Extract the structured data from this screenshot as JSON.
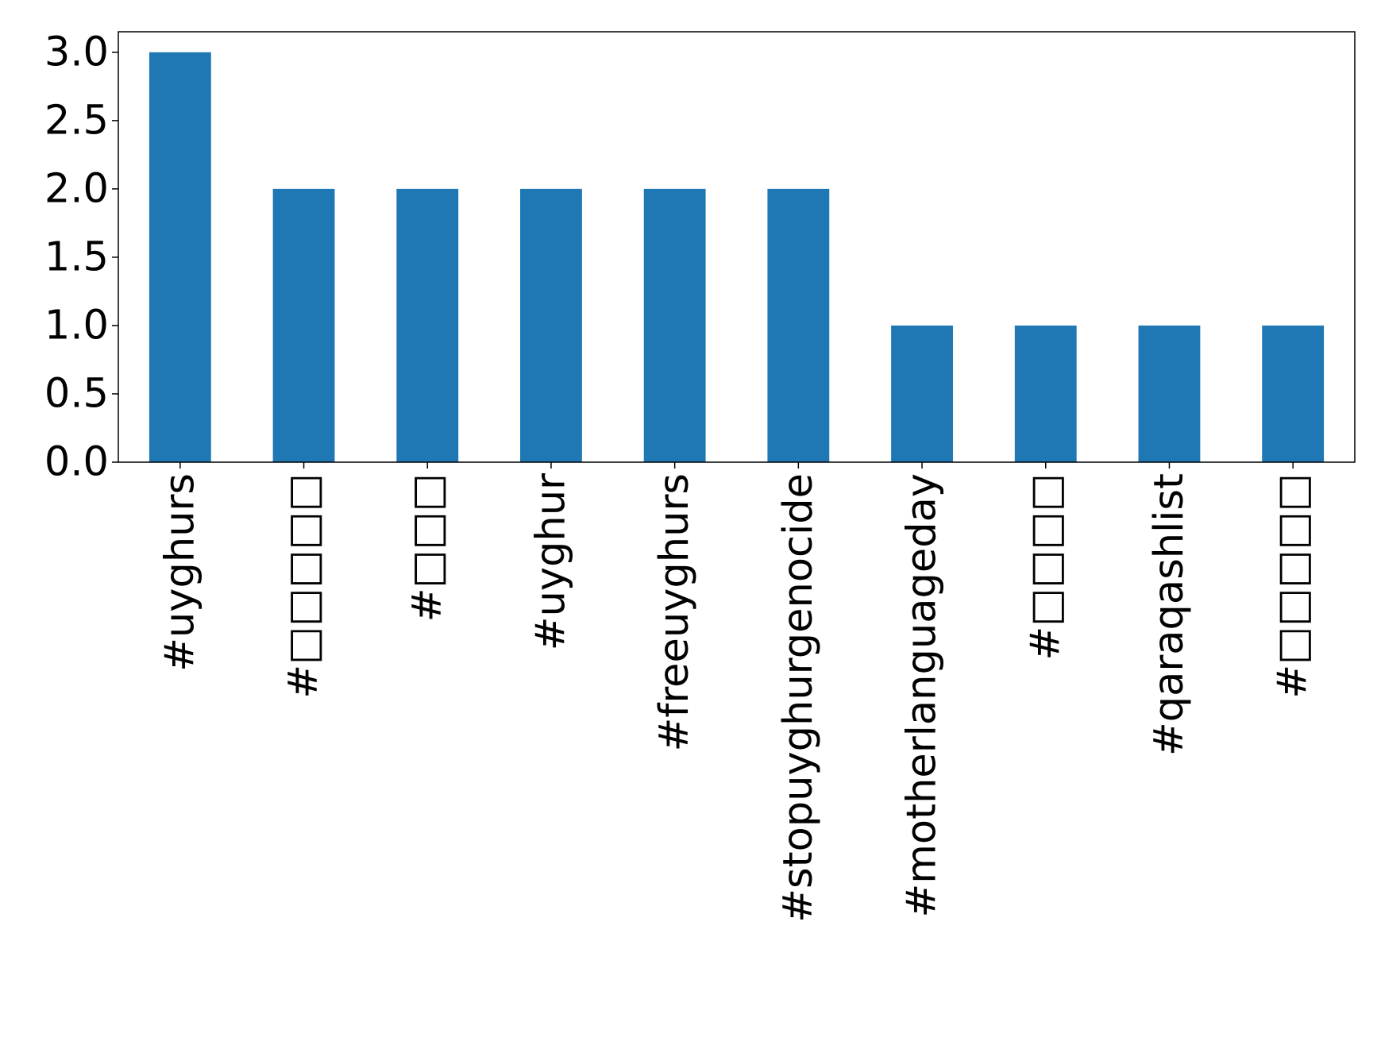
{
  "chart_data": {
    "type": "bar",
    "categories": [
      "#uyghurs",
      "#□□□□□",
      "#□□□",
      "#uyghur",
      "#freeuyghurs",
      "#stopuyghurgenocide",
      "#motherlanguageday",
      "#□□□□",
      "#qaraqashlist",
      "#□□□□□"
    ],
    "values": [
      3,
      2,
      2,
      2,
      2,
      2,
      1,
      1,
      1,
      1
    ],
    "title": "",
    "xlabel": "",
    "ylabel": "",
    "ylim": [
      0,
      3.15
    ],
    "yticks": [
      "0.0",
      "0.5",
      "1.0",
      "1.5",
      "2.0",
      "2.5",
      "3.0"
    ],
    "grid": false,
    "bar_color": "#1f77b4"
  }
}
